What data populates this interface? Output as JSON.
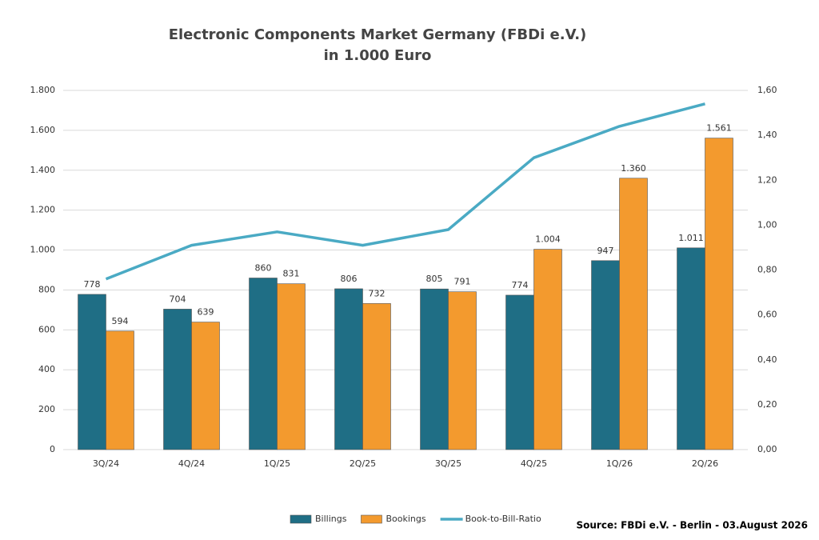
{
  "chart_data": {
    "type": "bar",
    "title": "Electronic Components Market Germany (FBDi e.V.)",
    "subtitle": "in 1.000 Euro",
    "categories": [
      "3Q/24",
      "4Q/24",
      "1Q/25",
      "2Q/25",
      "3Q/25",
      "4Q/25",
      "1Q/26",
      "2Q/26"
    ],
    "series": [
      {
        "name": "Billings",
        "color": "#1f6e85",
        "values": [
          778,
          704,
          860,
          806,
          805,
          774,
          947,
          1011
        ],
        "value_labels": [
          "778",
          "704",
          "860",
          "806",
          "805",
          "774",
          "947",
          "1.011"
        ]
      },
      {
        "name": "Bookings",
        "color": "#f39a2e",
        "values": [
          594,
          639,
          831,
          732,
          791,
          1004,
          1360,
          1561
        ],
        "value_labels": [
          "594",
          "639",
          "831",
          "732",
          "791",
          "1.004",
          "1.360",
          "1.561"
        ]
      },
      {
        "name": "Book-to-Bill-Ratio",
        "color": "#4aaac4",
        "type": "line",
        "axis": "y2",
        "values": [
          0.76,
          0.91,
          0.97,
          0.91,
          0.98,
          1.3,
          1.44,
          1.54
        ]
      }
    ],
    "ylim": [
      0,
      1800
    ],
    "yticks": [
      0,
      200,
      400,
      600,
      800,
      {
        "value": 1000,
        "label": "1.000"
      },
      {
        "value": 1200,
        "label": "1.200"
      },
      {
        "value": 1400,
        "label": "1.400"
      },
      {
        "value": 1600,
        "label": "1.600"
      },
      {
        "value": 1800,
        "label": "1.800"
      }
    ],
    "y2lim": [
      0,
      1.6
    ],
    "y2ticks": [
      {
        "value": 0,
        "label": "0,00"
      },
      {
        "value": 0.2,
        "label": "0,20"
      },
      {
        "value": 0.4,
        "label": "0,40"
      },
      {
        "value": 0.6,
        "label": "0,60"
      },
      {
        "value": 0.8,
        "label": "0,80"
      },
      {
        "value": 1.0,
        "label": "1,00"
      },
      {
        "value": 1.2,
        "label": "1,20"
      },
      {
        "value": 1.4,
        "label": "1,40"
      },
      {
        "value": 1.6,
        "label": "1,60"
      }
    ],
    "grid": true,
    "legend": "bottom",
    "source": "Source: FBDi e.V. - Berlin -  03.August 2026"
  }
}
